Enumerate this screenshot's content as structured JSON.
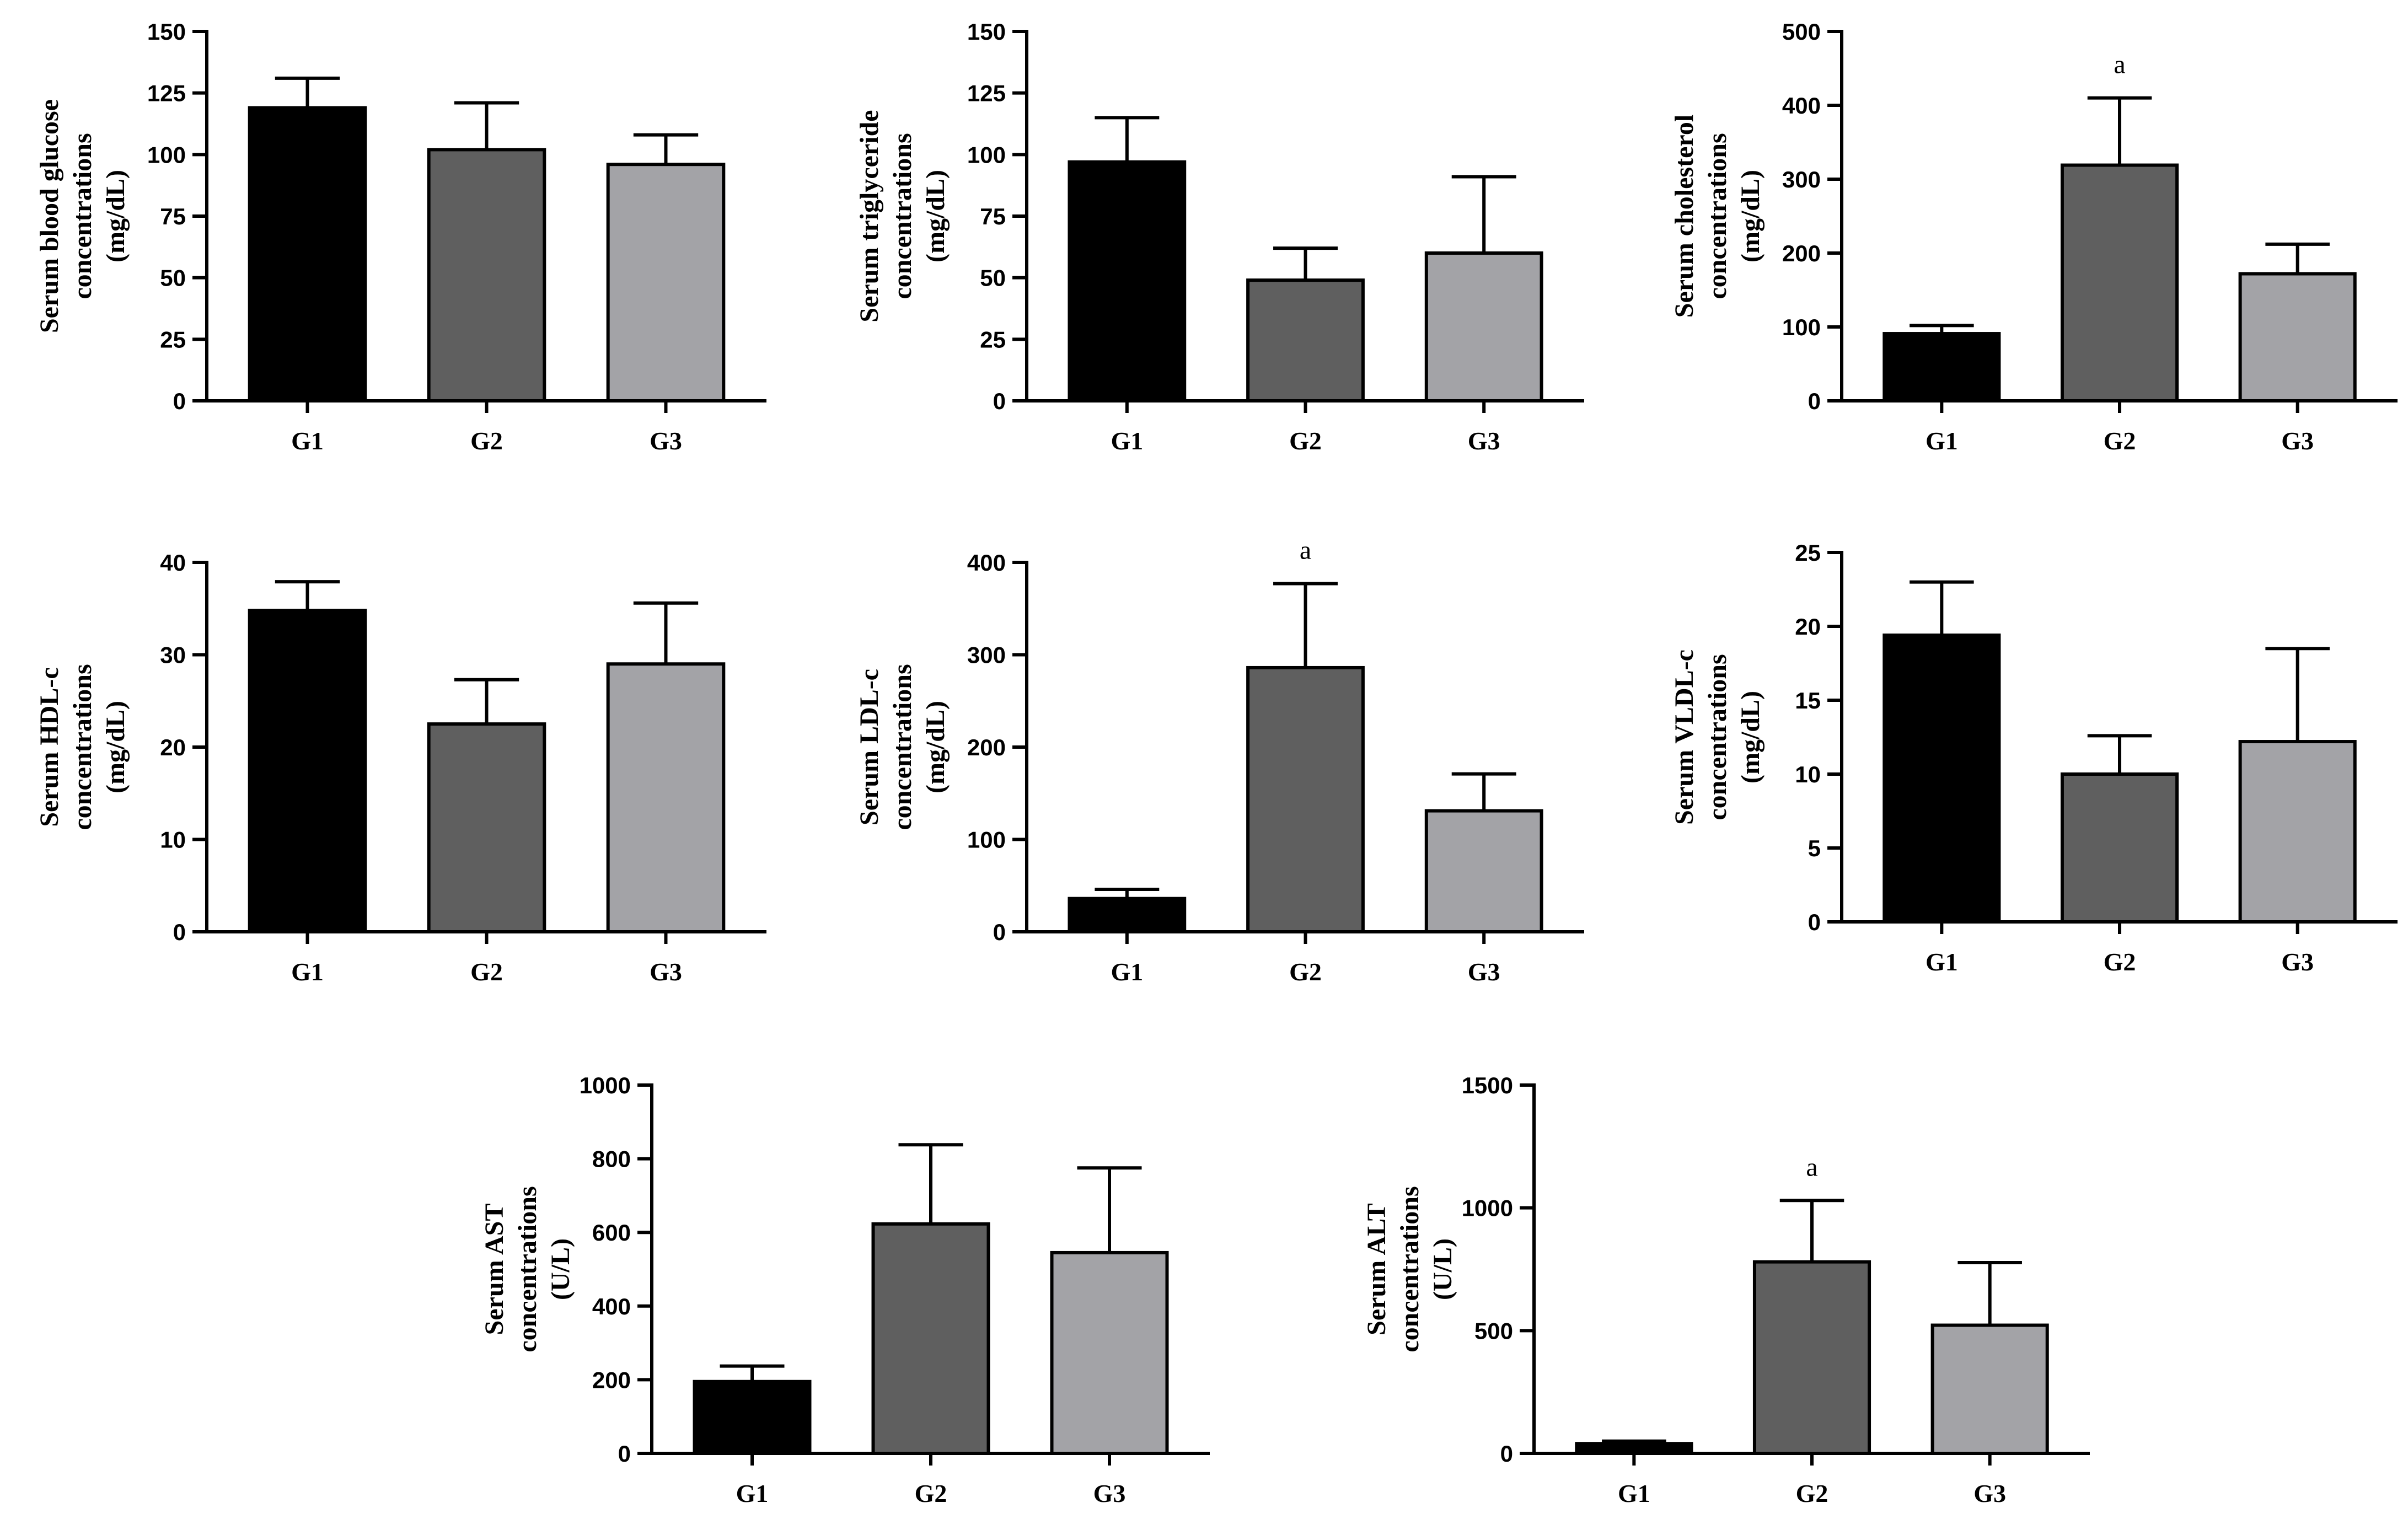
{
  "colors": {
    "G1": "#000000",
    "G2": "#5f5f5f",
    "G3": "#a3a3a7",
    "axis": "#000000"
  },
  "chart_data": [
    {
      "type": "bar",
      "title": "",
      "ylabel": [
        "Serum blood glucose",
        "concentrations",
        "(mg/dL)"
      ],
      "categories": [
        "G1",
        "G2",
        "G3"
      ],
      "values": [
        119,
        102,
        96
      ],
      "errors": [
        12,
        19,
        12
      ],
      "annotations": [
        "",
        "",
        ""
      ],
      "ylim": [
        0,
        150
      ],
      "yticks": [
        0,
        25,
        50,
        75,
        100,
        125,
        150
      ]
    },
    {
      "type": "bar",
      "title": "",
      "ylabel": [
        "Serum triglyceride",
        "concentrations",
        "(mg/dL)"
      ],
      "categories": [
        "G1",
        "G2",
        "G3"
      ],
      "values": [
        97,
        49,
        60
      ],
      "errors": [
        18,
        13,
        31
      ],
      "annotations": [
        "",
        "",
        ""
      ],
      "ylim": [
        0,
        150
      ],
      "yticks": [
        0,
        25,
        50,
        75,
        100,
        125,
        150
      ]
    },
    {
      "type": "bar",
      "title": "",
      "ylabel": [
        "Serum cholesterol",
        "concentrations",
        "(mg/dL)"
      ],
      "categories": [
        "G1",
        "G2",
        "G3"
      ],
      "values": [
        91,
        319,
        172
      ],
      "errors": [
        11,
        91,
        40
      ],
      "annotations": [
        "",
        "a",
        ""
      ],
      "ylim": [
        0,
        500
      ],
      "yticks": [
        0,
        100,
        200,
        300,
        400,
        500
      ]
    },
    {
      "type": "bar",
      "title": "",
      "ylabel": [
        "Serum HDL-c",
        "concentrations",
        "(mg/dL)"
      ],
      "categories": [
        "G1",
        "G2",
        "G3"
      ],
      "values": [
        34.8,
        22.5,
        29.0
      ],
      "errors": [
        3.1,
        4.8,
        6.6
      ],
      "annotations": [
        "",
        "",
        ""
      ],
      "ylim": [
        0,
        40
      ],
      "yticks": [
        0,
        10,
        20,
        30,
        40
      ]
    },
    {
      "type": "bar",
      "title": "",
      "ylabel": [
        "Serum LDL-c",
        "concentrations",
        "(mg/dL)"
      ],
      "categories": [
        "G1",
        "G2",
        "G3"
      ],
      "values": [
        36,
        286,
        131
      ],
      "errors": [
        10,
        91,
        40
      ],
      "annotations": [
        "",
        "a",
        ""
      ],
      "ylim": [
        0,
        400
      ],
      "yticks": [
        0,
        100,
        200,
        300,
        400
      ]
    },
    {
      "type": "bar",
      "title": "",
      "ylabel": [
        "Serum VLDL-c",
        "concentrations",
        "(mg/dL)"
      ],
      "categories": [
        "G1",
        "G2",
        "G3"
      ],
      "values": [
        19.4,
        10.0,
        12.2
      ],
      "errors": [
        3.6,
        2.6,
        6.3
      ],
      "annotations": [
        "",
        "",
        ""
      ],
      "ylim": [
        0,
        25
      ],
      "yticks": [
        0,
        5,
        10,
        15,
        20,
        25
      ]
    },
    {
      "type": "bar",
      "title": "",
      "ylabel": [
        "Serum AST",
        "concentrations",
        "(U/L)"
      ],
      "categories": [
        "G1",
        "G2",
        "G3"
      ],
      "values": [
        195,
        623,
        545
      ],
      "errors": [
        42,
        215,
        230
      ],
      "annotations": [
        "",
        "",
        ""
      ],
      "ylim": [
        0,
        1000
      ],
      "yticks": [
        0,
        200,
        400,
        600,
        800,
        1000
      ]
    },
    {
      "type": "bar",
      "title": "",
      "ylabel": [
        "Serum ALT",
        "concentrations",
        "(U/L)"
      ],
      "categories": [
        "G1",
        "G2",
        "G3"
      ],
      "values": [
        40,
        780,
        522
      ],
      "errors": [
        10,
        250,
        255
      ],
      "annotations": [
        "",
        "a",
        ""
      ],
      "ylim": [
        0,
        1500
      ],
      "yticks": [
        0,
        500,
        1000,
        1500
      ]
    }
  ]
}
